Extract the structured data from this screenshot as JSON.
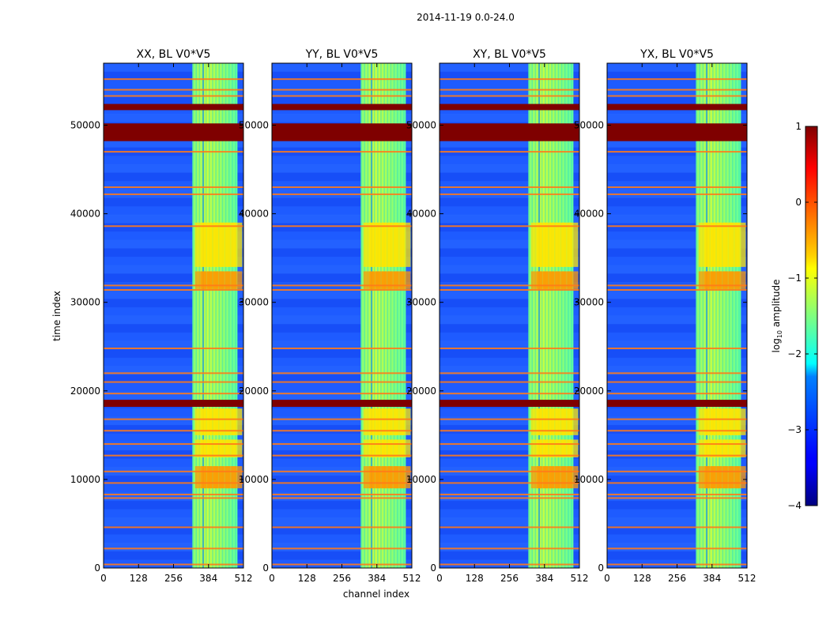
{
  "chart_data": {
    "type": "heatmap",
    "suptitle": "2014-11-19 0.0-24.0",
    "xlabel": "channel index",
    "ylabel": "time index",
    "xlim": [
      0,
      512
    ],
    "ylim": [
      0,
      57000
    ],
    "xticks": [
      0,
      128,
      256,
      384,
      512
    ],
    "yticks": [
      0,
      10000,
      20000,
      30000,
      40000,
      50000
    ],
    "panels": [
      {
        "title": "XX, BL V0*V5"
      },
      {
        "title": "YY, BL V0*V5"
      },
      {
        "title": "XY, BL V0*V5"
      },
      {
        "title": "YX, BL V0*V5"
      }
    ],
    "colorbar": {
      "label": "log",
      "label_sub": "10",
      "label_suffix": " amplitude",
      "range": [
        -4,
        1
      ],
      "ticks": [
        1,
        0,
        -1,
        -2,
        -3,
        -4
      ],
      "tick_labels": [
        "1",
        "0",
        "−1",
        "−2",
        "−3",
        "−4"
      ],
      "colormap": "jet"
    },
    "features": {
      "bright_band_channels": [
        325,
        490
      ],
      "saturated_time_bands": [
        [
          48200,
          50200
        ],
        [
          51700,
          52400
        ],
        [
          18200,
          19000
        ]
      ],
      "flag_lines_time": [
        400,
        2200,
        4600,
        7900,
        8300,
        9600,
        10900,
        12700,
        14000,
        15500,
        16800,
        19700,
        21000,
        22000,
        24800,
        31400,
        31900,
        38600,
        42200,
        43000,
        47000,
        53300,
        54000,
        55200
      ]
    }
  }
}
